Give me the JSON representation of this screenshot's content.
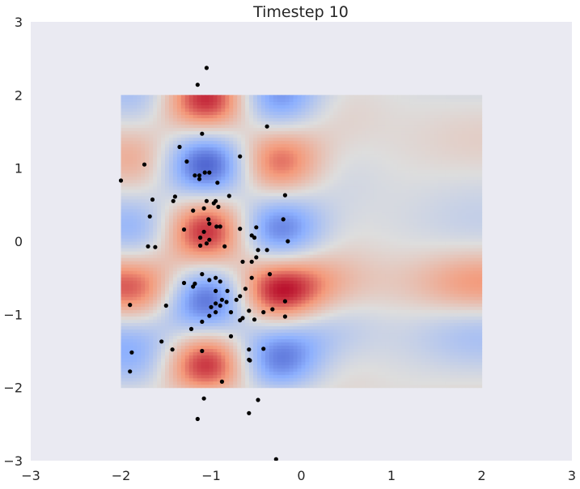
{
  "chart_data": {
    "type": "scatter",
    "title": "Timestep 10",
    "xlabel": "",
    "ylabel": "",
    "xlim": [
      -3,
      3
    ],
    "ylim": [
      -3,
      3
    ],
    "xticks": [
      "−3",
      "−2",
      "−1",
      "0",
      "1",
      "2",
      "3"
    ],
    "yticks": [
      "−3",
      "−2",
      "−1",
      "0",
      "1",
      "2",
      "3"
    ],
    "grid": false,
    "background_color": "#EAEAF2",
    "point_color": "#000000",
    "heatmap": {
      "colormap": "coolwarm",
      "x_range": [
        -2,
        2
      ],
      "y_range": [
        -2,
        2
      ]
    },
    "points": [
      [
        -1.05,
        2.37
      ],
      [
        -1.15,
        2.14
      ],
      [
        -0.38,
        1.57
      ],
      [
        -1.1,
        1.47
      ],
      [
        -1.35,
        1.29
      ],
      [
        -0.68,
        1.16
      ],
      [
        -1.27,
        1.09
      ],
      [
        -1.74,
        1.05
      ],
      [
        -1.07,
        0.94
      ],
      [
        -1.02,
        0.94
      ],
      [
        -1.13,
        0.9
      ],
      [
        -1.18,
        0.9
      ],
      [
        -0.93,
        0.8
      ],
      [
        -1.13,
        0.85
      ],
      [
        -2.0,
        0.83
      ],
      [
        -0.18,
        0.63
      ],
      [
        -0.8,
        0.62
      ],
      [
        -1.4,
        0.61
      ],
      [
        -1.65,
        0.57
      ],
      [
        -1.42,
        0.55
      ],
      [
        -1.05,
        0.55
      ],
      [
        -0.95,
        0.55
      ],
      [
        -0.97,
        0.52
      ],
      [
        -0.92,
        0.47
      ],
      [
        -1.08,
        0.45
      ],
      [
        -1.2,
        0.42
      ],
      [
        -1.68,
        0.34
      ],
      [
        -0.2,
        0.3
      ],
      [
        -1.03,
        0.3
      ],
      [
        -1.02,
        0.24
      ],
      [
        -0.94,
        0.2
      ],
      [
        -0.5,
        0.19
      ],
      [
        -0.68,
        0.17
      ],
      [
        -0.9,
        0.2
      ],
      [
        -1.3,
        0.16
      ],
      [
        -1.08,
        0.13
      ],
      [
        -0.55,
        0.08
      ],
      [
        -1.12,
        0.05
      ],
      [
        -1.02,
        0.02
      ],
      [
        -0.52,
        0.05
      ],
      [
        -0.15,
        0.0
      ],
      [
        -1.05,
        -0.03
      ],
      [
        -1.12,
        -0.06
      ],
      [
        -1.7,
        -0.07
      ],
      [
        -1.62,
        -0.08
      ],
      [
        -0.85,
        -0.07
      ],
      [
        -0.48,
        -0.12
      ],
      [
        -0.38,
        -0.12
      ],
      [
        -0.5,
        -0.22
      ],
      [
        -0.65,
        -0.28
      ],
      [
        -0.55,
        -0.28
      ],
      [
        -1.1,
        -0.45
      ],
      [
        -0.35,
        -0.45
      ],
      [
        -0.55,
        -0.5
      ],
      [
        -0.95,
        -0.5
      ],
      [
        -1.02,
        -0.53
      ],
      [
        -0.9,
        -0.55
      ],
      [
        -1.3,
        -0.57
      ],
      [
        -1.18,
        -0.58
      ],
      [
        -1.2,
        -0.62
      ],
      [
        -0.62,
        -0.65
      ],
      [
        -0.95,
        -0.68
      ],
      [
        -0.82,
        -0.68
      ],
      [
        -0.68,
        -0.75
      ],
      [
        -0.72,
        -0.8
      ],
      [
        -0.88,
        -0.8
      ],
      [
        -0.83,
        -0.83
      ],
      [
        -0.95,
        -0.85
      ],
      [
        -0.9,
        -0.88
      ],
      [
        -0.18,
        -0.82
      ],
      [
        -1.9,
        -0.87
      ],
      [
        -1.5,
        -0.88
      ],
      [
        -1.0,
        -0.9
      ],
      [
        -0.32,
        -0.93
      ],
      [
        -0.42,
        -0.97
      ],
      [
        -0.58,
        -0.95
      ],
      [
        -0.78,
        -0.97
      ],
      [
        -0.95,
        -0.97
      ],
      [
        -1.02,
        -1.02
      ],
      [
        -0.18,
        -1.03
      ],
      [
        -0.65,
        -1.05
      ],
      [
        -0.52,
        -1.07
      ],
      [
        -0.68,
        -1.08
      ],
      [
        -1.1,
        -1.1
      ],
      [
        -1.22,
        -1.2
      ],
      [
        -0.78,
        -1.3
      ],
      [
        -1.55,
        -1.37
      ],
      [
        -0.42,
        -1.47
      ],
      [
        -0.58,
        -1.48
      ],
      [
        -1.43,
        -1.48
      ],
      [
        -1.1,
        -1.5
      ],
      [
        -1.88,
        -1.52
      ],
      [
        -0.58,
        -1.62
      ],
      [
        -0.57,
        -1.63
      ],
      [
        -1.9,
        -1.78
      ],
      [
        -0.88,
        -1.92
      ],
      [
        -1.08,
        -2.15
      ],
      [
        -0.48,
        -2.17
      ],
      [
        -0.58,
        -2.35
      ],
      [
        -1.15,
        -2.43
      ],
      [
        -0.28,
        -2.98
      ]
    ]
  }
}
